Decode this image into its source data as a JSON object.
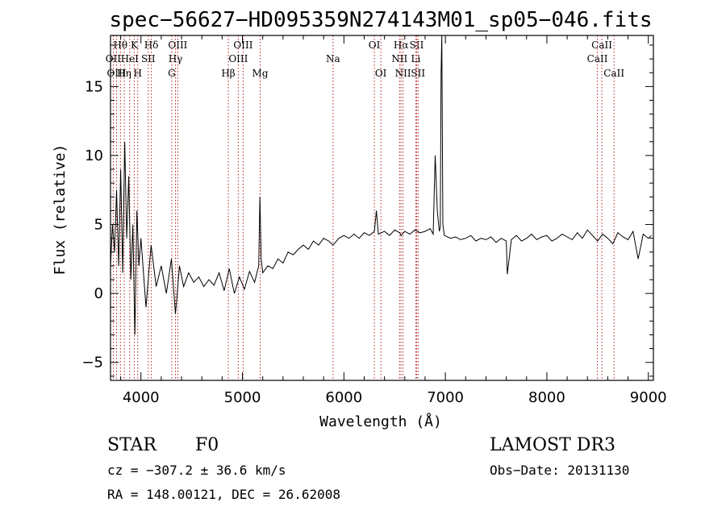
{
  "chart_data": {
    "type": "line",
    "title": "spec−56627−HD095359N274143M01_sp05−046.fits",
    "xlabel": "Wavelength (Å)",
    "ylabel": "Flux (relative)",
    "xlim": [
      3700,
      9050
    ],
    "ylim": [
      -6.3,
      18.7
    ],
    "x_ticks": [
      4000,
      5000,
      6000,
      7000,
      8000,
      9000
    ],
    "y_ticks": [
      -5,
      0,
      5,
      10,
      15
    ],
    "x_tick_labels": [
      "4000",
      "5000",
      "6000",
      "7000",
      "8000",
      "9000"
    ],
    "y_tick_labels": [
      "−5",
      "0",
      "5",
      "10",
      "15"
    ],
    "grid": false,
    "line_color": "#000000",
    "marker_color": "#b22222",
    "series": [
      {
        "name": "flux",
        "x": [
          3700,
          3720,
          3740,
          3760,
          3780,
          3800,
          3820,
          3840,
          3860,
          3880,
          3900,
          3920,
          3940,
          3960,
          3980,
          4000,
          4050,
          4100,
          4150,
          4200,
          4250,
          4300,
          4340,
          4380,
          4420,
          4470,
          4520,
          4570,
          4620,
          4670,
          4720,
          4770,
          4820,
          4870,
          4920,
          4970,
          5020,
          5070,
          5120,
          5160,
          5172,
          5185,
          5200,
          5250,
          5300,
          5350,
          5400,
          5450,
          5500,
          5550,
          5600,
          5650,
          5700,
          5750,
          5800,
          5850,
          5893,
          5950,
          6000,
          6050,
          6100,
          6150,
          6200,
          6250,
          6300,
          6320,
          6340,
          6400,
          6450,
          6500,
          6550,
          6563,
          6600,
          6650,
          6700,
          6750,
          6800,
          6850,
          6880,
          6900,
          6920,
          6940,
          6950,
          6958,
          6965,
          6975,
          6990,
          7050,
          7100,
          7150,
          7200,
          7250,
          7300,
          7350,
          7400,
          7450,
          7500,
          7550,
          7600,
          7610,
          7650,
          7700,
          7750,
          7800,
          7850,
          7900,
          7950,
          8000,
          8050,
          8100,
          8150,
          8200,
          8250,
          8300,
          8350,
          8400,
          8450,
          8500,
          8550,
          8600,
          8650,
          8700,
          8750,
          8800,
          8850,
          8900,
          8950,
          9000,
          9030
        ],
        "y": [
          2.0,
          5.0,
          3.0,
          7.5,
          2.0,
          9.0,
          1.5,
          11.0,
          4.0,
          8.5,
          1.0,
          5.0,
          -3.0,
          6.0,
          2.0,
          4.0,
          -1.0,
          3.5,
          0.5,
          2.0,
          0.0,
          2.5,
          -1.5,
          2.0,
          0.5,
          1.5,
          0.8,
          1.2,
          0.5,
          1.0,
          0.6,
          1.5,
          0.2,
          1.8,
          0.0,
          1.2,
          0.3,
          1.6,
          0.8,
          2.0,
          7.0,
          2.5,
          1.5,
          2.0,
          1.8,
          2.5,
          2.2,
          3.0,
          2.8,
          3.2,
          3.5,
          3.2,
          3.8,
          3.5,
          4.0,
          3.8,
          3.5,
          4.0,
          4.2,
          4.0,
          4.3,
          4.0,
          4.4,
          4.2,
          4.5,
          6.0,
          4.3,
          4.5,
          4.2,
          4.6,
          4.4,
          4.2,
          4.5,
          4.3,
          4.6,
          4.4,
          4.5,
          4.7,
          4.3,
          10.0,
          6.0,
          4.5,
          4.8,
          16.0,
          18.7,
          5.0,
          4.2,
          4.0,
          4.1,
          3.9,
          4.0,
          4.2,
          3.8,
          4.0,
          3.9,
          4.1,
          3.7,
          4.0,
          3.8,
          1.4,
          3.9,
          4.2,
          3.8,
          4.0,
          4.3,
          3.9,
          4.1,
          4.2,
          3.8,
          4.0,
          4.3,
          4.1,
          3.9,
          4.4,
          4.0,
          4.6,
          4.2,
          3.8,
          4.3,
          4.0,
          3.6,
          4.4,
          4.1,
          3.9,
          4.5,
          2.5,
          4.3,
          4.0,
          4.2
        ]
      }
    ],
    "spectral_lines": [
      {
        "label": "Hθ",
        "wavelength": 3798,
        "row": 0
      },
      {
        "label": "K",
        "wavelength": 3934,
        "row": 0
      },
      {
        "label": "Hδ",
        "wavelength": 4102,
        "row": 0
      },
      {
        "label": "OIII",
        "wavelength": 4363,
        "row": 0
      },
      {
        "label": "OIII",
        "wavelength": 5007,
        "row": 0
      },
      {
        "label": "OI",
        "wavelength": 6300,
        "row": 0
      },
      {
        "label": "Hα",
        "wavelength": 6563,
        "row": 0
      },
      {
        "label": "SII",
        "wavelength": 6717,
        "row": 0
      },
      {
        "label": "CaII",
        "wavelength": 8542,
        "row": 0
      },
      {
        "label": "OII",
        "wavelength": 3727,
        "row": 1
      },
      {
        "label": "HeI",
        "wavelength": 3889,
        "row": 1
      },
      {
        "label": "SII",
        "wavelength": 4072,
        "row": 1
      },
      {
        "label": "Hγ",
        "wavelength": 4340,
        "row": 1
      },
      {
        "label": "OIII",
        "wavelength": 4959,
        "row": 1
      },
      {
        "label": "Na",
        "wavelength": 5893,
        "row": 1
      },
      {
        "label": "NII",
        "wavelength": 6548,
        "row": 1
      },
      {
        "label": "Li",
        "wavelength": 6708,
        "row": 1
      },
      {
        "label": "CaII",
        "wavelength": 8498,
        "row": 1
      },
      {
        "label": "OIII",
        "wavelength": 3760,
        "row": 2
      },
      {
        "label": "Hη",
        "wavelength": 3835,
        "row": 2
      },
      {
        "label": "H",
        "wavelength": 3968,
        "row": 2
      },
      {
        "label": "G",
        "wavelength": 4304,
        "row": 2
      },
      {
        "label": "Hβ",
        "wavelength": 4861,
        "row": 2
      },
      {
        "label": "Mg",
        "wavelength": 5175,
        "row": 2
      },
      {
        "label": "OI",
        "wavelength": 6364,
        "row": 2
      },
      {
        "label": "NII",
        "wavelength": 6583,
        "row": 2
      },
      {
        "label": "SII",
        "wavelength": 6731,
        "row": 2
      },
      {
        "label": "CaII",
        "wavelength": 8662,
        "row": 2
      }
    ]
  },
  "info": {
    "object_class": "STAR",
    "subclass": "F0",
    "survey": "LAMOST DR3",
    "cz": "cz = −307.2 ± 36.6 km/s",
    "obs_date": "Obs−Date: 20131130",
    "radec": "RA = 148.00121, DEC =  26.62008"
  }
}
